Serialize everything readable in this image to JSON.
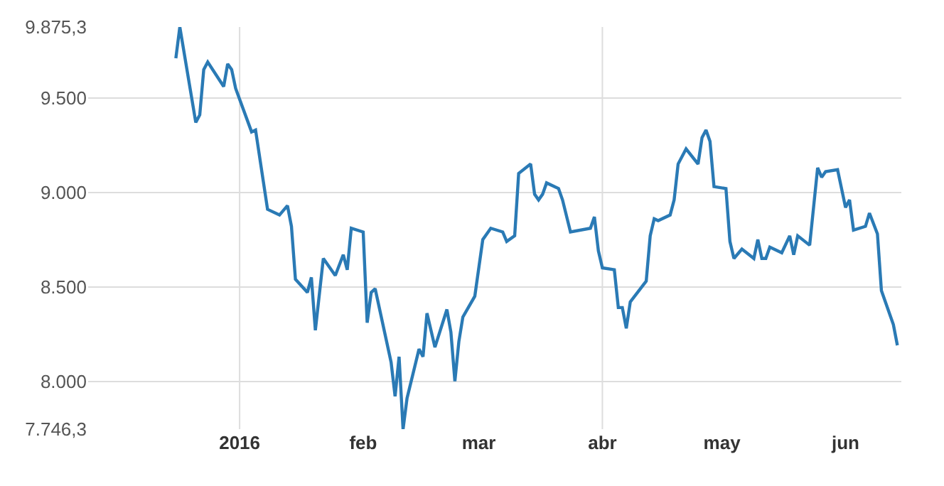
{
  "chart_data": {
    "type": "line",
    "x": [
      "2015-12-16",
      "2015-12-17",
      "2015-12-21",
      "2015-12-22",
      "2015-12-23",
      "2015-12-24",
      "2015-12-28",
      "2015-12-29",
      "2015-12-30",
      "2015-12-31",
      "2016-01-04",
      "2016-01-05",
      "2016-01-08",
      "2016-01-11",
      "2016-01-13",
      "2016-01-14",
      "2016-01-15",
      "2016-01-18",
      "2016-01-19",
      "2016-01-20",
      "2016-01-22",
      "2016-01-25",
      "2016-01-27",
      "2016-01-28",
      "2016-01-29",
      "2016-02-01",
      "2016-02-02",
      "2016-02-03",
      "2016-02-04",
      "2016-02-08",
      "2016-02-09",
      "2016-02-10",
      "2016-02-11",
      "2016-02-12",
      "2016-02-15",
      "2016-02-16",
      "2016-02-17",
      "2016-02-19",
      "2016-02-22",
      "2016-02-23",
      "2016-02-24",
      "2016-02-25",
      "2016-02-26",
      "2016-02-29",
      "2016-03-02",
      "2016-03-04",
      "2016-03-07",
      "2016-03-08",
      "2016-03-10",
      "2016-03-11",
      "2016-03-14",
      "2016-03-15",
      "2016-03-16",
      "2016-03-17",
      "2016-03-18",
      "2016-03-21",
      "2016-03-22",
      "2016-03-24",
      "2016-03-29",
      "2016-03-30",
      "2016-03-31",
      "2016-04-01",
      "2016-04-04",
      "2016-04-05",
      "2016-04-06",
      "2016-04-07",
      "2016-04-08",
      "2016-04-12",
      "2016-04-13",
      "2016-04-14",
      "2016-04-15",
      "2016-04-18",
      "2016-04-19",
      "2016-04-20",
      "2016-04-22",
      "2016-04-25",
      "2016-04-26",
      "2016-04-27",
      "2016-04-28",
      "2016-04-29",
      "2016-05-02",
      "2016-05-03",
      "2016-05-04",
      "2016-05-06",
      "2016-05-09",
      "2016-05-10",
      "2016-05-11",
      "2016-05-12",
      "2016-05-13",
      "2016-05-16",
      "2016-05-18",
      "2016-05-19",
      "2016-05-20",
      "2016-05-23",
      "2016-05-25",
      "2016-05-26",
      "2016-05-27",
      "2016-05-30",
      "2016-05-31",
      "2016-06-01",
      "2016-06-02",
      "2016-06-03",
      "2016-06-06",
      "2016-06-07",
      "2016-06-09",
      "2016-06-10",
      "2016-06-13",
      "2016-06-14"
    ],
    "series": [
      {
        "color": "#2a7ab5",
        "values": [
          9710,
          9875.3,
          9370,
          9410,
          9650,
          9690,
          9560,
          9680,
          9650,
          9550,
          9320,
          9330,
          8910,
          8880,
          8930,
          8820,
          8540,
          8470,
          8550,
          8270,
          8650,
          8560,
          8670,
          8590,
          8810,
          8790,
          8310,
          8470,
          8490,
          8100,
          7920,
          8130,
          7746.3,
          7910,
          8170,
          8130,
          8360,
          8180,
          8380,
          8260,
          8000,
          8210,
          8340,
          8450,
          8750,
          8810,
          8790,
          8740,
          8770,
          9100,
          9150,
          8990,
          8960,
          8990,
          9050,
          9020,
          8960,
          8790,
          8810,
          8870,
          8690,
          8600,
          8590,
          8390,
          8390,
          8280,
          8420,
          8530,
          8770,
          8860,
          8850,
          8880,
          8960,
          9150,
          9230,
          9150,
          9290,
          9330,
          9270,
          9030,
          9020,
          8740,
          8650,
          8700,
          8650,
          8750,
          8650,
          8650,
          8710,
          8680,
          8770,
          8670,
          8770,
          8720,
          9130,
          9080,
          9110,
          9120,
          9020,
          8920,
          8960,
          8800,
          8820,
          8890,
          8780,
          8480,
          8300,
          8190
        ]
      }
    ],
    "xlim": [
      "2015-11-24",
      "2016-06-15"
    ],
    "xticks": [
      {
        "value": "2016-01-01",
        "label": "2016"
      },
      {
        "value": "2016-02-01",
        "label": "feb"
      },
      {
        "value": "2016-03-01",
        "label": "mar"
      },
      {
        "value": "2016-04-01",
        "label": "abr"
      },
      {
        "value": "2016-05-01",
        "label": "may"
      },
      {
        "value": "2016-06-01",
        "label": "jun"
      }
    ],
    "ylim": [
      7746.3,
      9875.3
    ],
    "yticks": [
      {
        "value": 7746.3,
        "label": "7.746,3"
      },
      {
        "value": 8000,
        "label": "8.000"
      },
      {
        "value": 8500,
        "label": "8.500"
      },
      {
        "value": 9000,
        "label": "9.000"
      },
      {
        "value": 9500,
        "label": "9.500"
      },
      {
        "value": 9875.3,
        "label": "9.875,3"
      }
    ],
    "grid": "y",
    "ref_lines": [
      {
        "axis": "x",
        "value": "2016-01-01",
        "color": "#dddddd"
      },
      {
        "axis": "x",
        "value": "2016-04-01",
        "color": "#dddddd"
      }
    ],
    "marker": "none",
    "line_style": "solid"
  }
}
